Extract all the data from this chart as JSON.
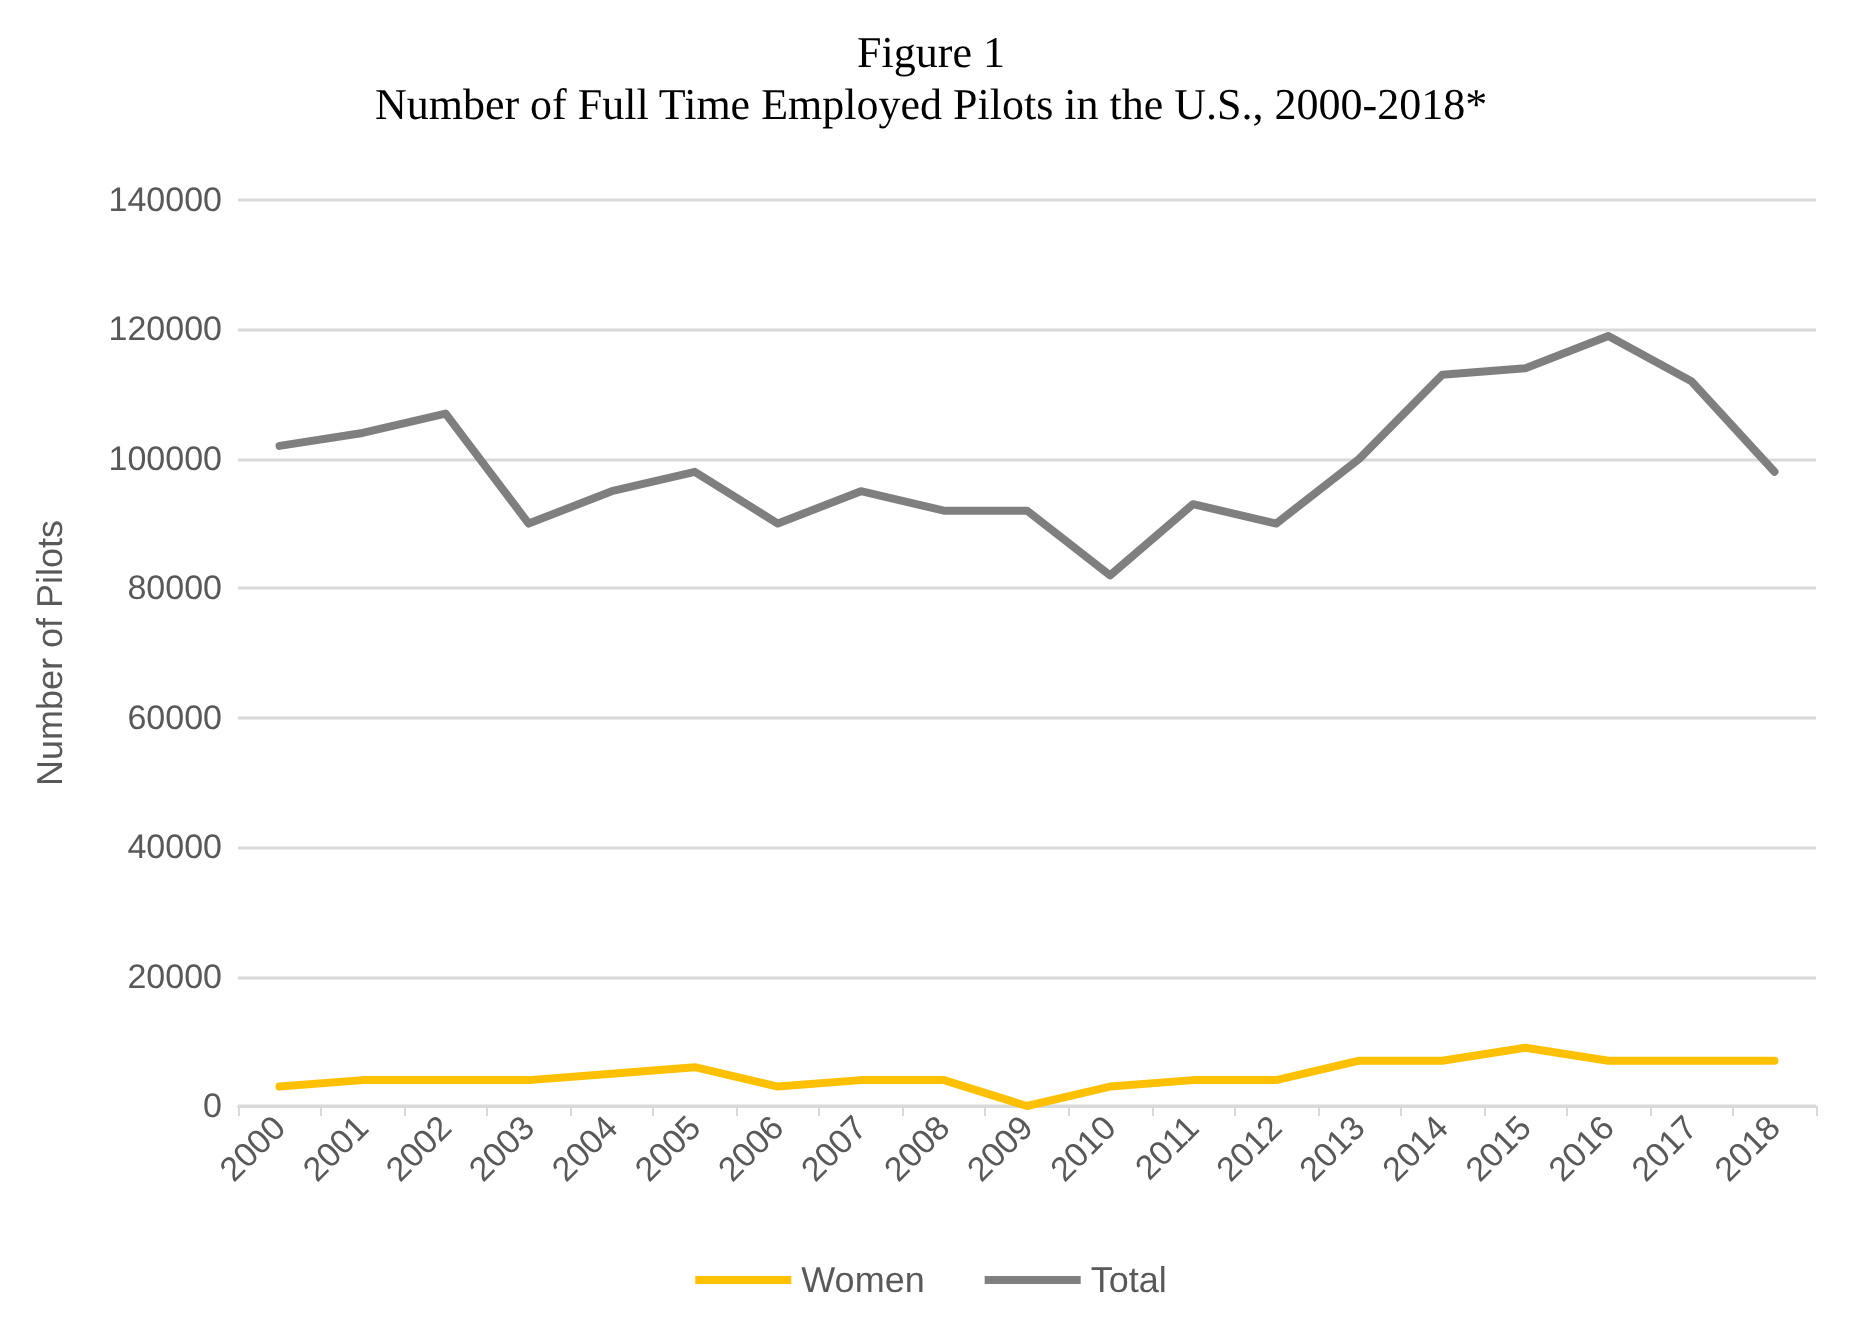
{
  "chart_data": {
    "type": "line",
    "title": "Figure 1",
    "subtitle": "Number of Full Time Employed Pilots in the U.S., 2000-2018*",
    "ylabel": "Number of Pilots",
    "categories": [
      "2000",
      "2001",
      "2002",
      "2003",
      "2004",
      "2005",
      "2006",
      "2007",
      "2008",
      "2009",
      "2010",
      "2011",
      "2012",
      "2013",
      "2014",
      "2015",
      "2016",
      "2017",
      "2018"
    ],
    "series": [
      {
        "name": "Women",
        "color": "#ffc000",
        "values": [
          3000,
          4000,
          4000,
          4000,
          5000,
          6000,
          3000,
          4000,
          4000,
          0,
          3000,
          4000,
          4000,
          7000,
          7000,
          9000,
          7000,
          7000,
          7000
        ]
      },
      {
        "name": "Total",
        "color": "#7f7f7f",
        "values": [
          102000,
          104000,
          107000,
          90000,
          95000,
          98000,
          90000,
          95000,
          92000,
          92000,
          82000,
          93000,
          90000,
          100000,
          113000,
          114000,
          119000,
          112000,
          98000
        ]
      }
    ],
    "ylim": [
      0,
      140000
    ],
    "yticks": [
      0,
      20000,
      40000,
      60000,
      80000,
      100000,
      120000,
      140000
    ],
    "grid": "y",
    "legend": "bottom",
    "marker": "none",
    "line_style": "solid"
  }
}
